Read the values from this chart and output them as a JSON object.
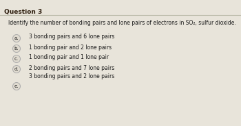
{
  "title": "Question 3",
  "question": "Identify the number of bonding pairs and lone pairs of electrons in SO₂, sulfur dioxide.",
  "options": [
    {
      "label": "a.",
      "text": "3 bonding pairs and 6 lone pairs"
    },
    {
      "label": "b.",
      "text": "1 bonding pair and 2 lone pairs"
    },
    {
      "label": "c.",
      "text": "1 bonding pair and 1 lone pair"
    },
    {
      "label": "d.",
      "text": "2 bonding pairs and 7 lone pairs"
    },
    {
      "label": "e.",
      "text": "3 bonding pairs and 2 lone pairs"
    }
  ],
  "bg_color": "#e8e4da",
  "title_text_color": "#2a1a0a",
  "option_text_color": "#1a1a1a",
  "question_text_color": "#1a1a1a",
  "circle_facecolor": "#e0dbd0",
  "circle_edge_color": "#aaaaaa",
  "divider_color": "#bbbbaa",
  "font_size_title": 6.5,
  "font_size_question": 5.5,
  "font_size_options": 5.5,
  "font_size_label": 5.0
}
